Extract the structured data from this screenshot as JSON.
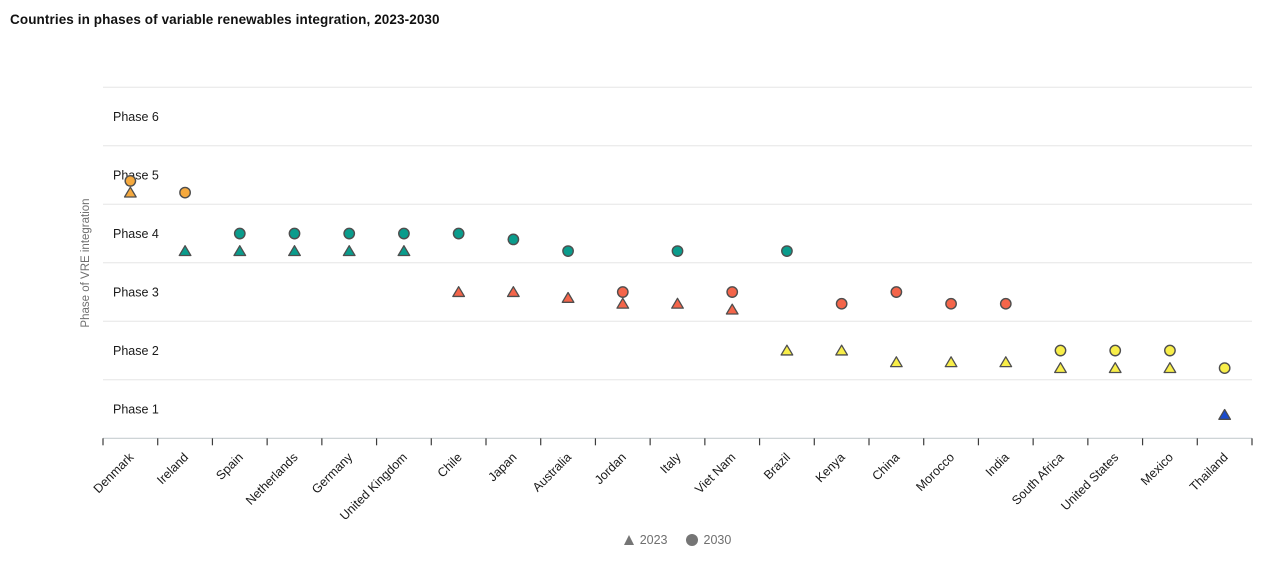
{
  "title": "Countries in phases of variable renewables integration, 2023-2030",
  "legend": {
    "items": [
      {
        "label": "2023",
        "marker": "triangle"
      },
      {
        "label": "2030",
        "marker": "circle"
      }
    ],
    "color": "#757575"
  },
  "chart_data": {
    "type": "scatter",
    "title": "Countries in phases of variable renewables integration, 2023-2030",
    "xlabel": "",
    "ylabel": "Phase of VRE integration",
    "ylim": [
      0.5,
      6.5
    ],
    "grid": true,
    "legend_position": "bottom",
    "y_tick_labels": [
      "Phase 1",
      "Phase 2",
      "Phase 3",
      "Phase 4",
      "Phase 5",
      "Phase 6"
    ],
    "categories": [
      "Denmark",
      "Ireland",
      "Spain",
      "Netherlands",
      "Germany",
      "United Kingdom",
      "Chile",
      "Japan",
      "Australia",
      "Jordan",
      "Italy",
      "Viet Nam",
      "Brazil",
      "Kenya",
      "China",
      "Morocco",
      "India",
      "South Africa",
      "United States",
      "Mexico",
      "Thailand"
    ],
    "series": [
      {
        "name": "2023",
        "marker": "triangle",
        "values": [
          4.7,
          3.7,
          3.7,
          3.7,
          3.7,
          3.7,
          3.0,
          3.0,
          2.9,
          2.8,
          2.8,
          2.7,
          2.0,
          2.0,
          1.8,
          1.8,
          1.8,
          1.7,
          1.7,
          1.7,
          0.9
        ]
      },
      {
        "name": "2030",
        "marker": "circle",
        "values": [
          4.9,
          4.7,
          4.0,
          4.0,
          4.0,
          4.0,
          4.0,
          3.9,
          3.7,
          3.0,
          3.7,
          3.0,
          3.7,
          2.8,
          3.0,
          2.8,
          2.8,
          2.0,
          2.0,
          2.0,
          1.7
        ]
      }
    ],
    "phase_colors": {
      "1": "#1A4CCE",
      "2": "#F8EE49",
      "3": "#F4654A",
      "4": "#0A9C8C",
      "5": "#F5A93E"
    },
    "marker_stroke": "#4E4E4E",
    "grid_color": "#E6E6E6",
    "axis_line_color": "#C7CED1",
    "tick_color": "#3C3C3C",
    "label_color": "#1A1A1A",
    "muted_color": "#6F6F6F"
  }
}
